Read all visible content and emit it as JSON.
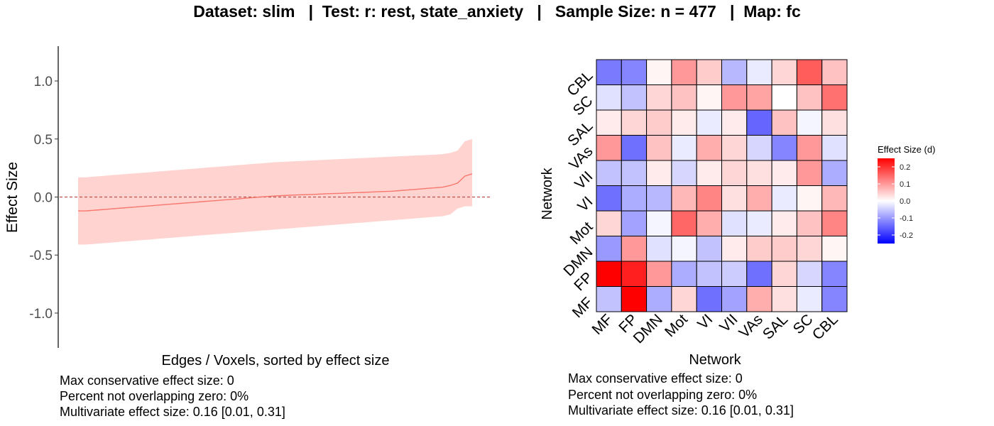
{
  "title": "Dataset: slim   |  Test: r: rest, state_anxiety   |   Sample Size: n = 477   |  Map: fc",
  "colors": {
    "line": "#f8766d",
    "ribbon": "#ffd4d0",
    "zero_line": "#c0504d",
    "low": "#0000ff",
    "mid": "#ffffff",
    "high": "#ff0000",
    "tile_border": "#000000"
  },
  "left_stats": [
    "Max conservative effect size: 0",
    "Percent not overlapping zero: 0%",
    "Multivariate effect size: 0.16 [0.01, 0.31]"
  ],
  "right_stats": [
    "Max conservative effect size: 0",
    "Percent not overlapping zero: 0%",
    "Multivariate effect size: 0.16 [0.01, 0.31]"
  ],
  "chart_data": [
    {
      "type": "line",
      "title": "",
      "xlabel": "Edges / Voxels, sorted by effect size",
      "ylabel": "Effect Size",
      "ylim": [
        -1.3,
        1.3
      ],
      "yticks": [
        -1.0,
        -0.5,
        0.0,
        0.5,
        1.0
      ],
      "ytick_labels": [
        "-1.0",
        "-0.5",
        "0.0",
        "0.5",
        "1.0"
      ],
      "reference_line": 0,
      "series": [
        {
          "x": [
            1,
            2,
            3,
            4,
            5,
            6,
            7,
            8,
            9,
            10,
            11,
            12,
            13,
            14,
            15,
            16,
            17,
            18,
            19,
            20,
            21,
            22,
            23,
            24,
            25,
            26,
            27,
            28,
            29,
            30,
            31,
            32,
            33,
            34,
            35,
            36,
            37,
            38,
            39,
            40,
            41,
            42,
            43,
            44,
            45,
            46,
            47,
            48,
            49,
            50,
            51,
            52,
            53,
            54,
            55
          ],
          "y": [
            -0.12,
            -0.12,
            -0.115,
            -0.11,
            -0.105,
            -0.1,
            -0.095,
            -0.09,
            -0.085,
            -0.08,
            -0.075,
            -0.07,
            -0.065,
            -0.06,
            -0.055,
            -0.05,
            -0.045,
            -0.04,
            -0.035,
            -0.03,
            -0.025,
            -0.02,
            -0.015,
            -0.01,
            -0.005,
            0.0,
            0.005,
            0.01,
            0.012,
            0.015,
            0.018,
            0.02,
            0.022,
            0.025,
            0.028,
            0.03,
            0.032,
            0.035,
            0.038,
            0.04,
            0.042,
            0.045,
            0.048,
            0.05,
            0.055,
            0.06,
            0.065,
            0.07,
            0.075,
            0.08,
            0.085,
            0.1,
            0.12,
            0.18,
            0.2
          ],
          "lower": [
            -0.41,
            -0.41,
            -0.405,
            -0.4,
            -0.395,
            -0.39,
            -0.385,
            -0.38,
            -0.375,
            -0.37,
            -0.365,
            -0.36,
            -0.355,
            -0.35,
            -0.345,
            -0.34,
            -0.335,
            -0.33,
            -0.325,
            -0.32,
            -0.315,
            -0.31,
            -0.305,
            -0.3,
            -0.295,
            -0.29,
            -0.285,
            -0.28,
            -0.275,
            -0.27,
            -0.265,
            -0.26,
            -0.255,
            -0.25,
            -0.245,
            -0.24,
            -0.235,
            -0.23,
            -0.225,
            -0.22,
            -0.215,
            -0.21,
            -0.205,
            -0.2,
            -0.195,
            -0.19,
            -0.185,
            -0.18,
            -0.175,
            -0.17,
            -0.165,
            -0.15,
            -0.1,
            -0.08,
            -0.08
          ],
          "upper": [
            0.17,
            0.17,
            0.175,
            0.18,
            0.185,
            0.19,
            0.195,
            0.2,
            0.205,
            0.21,
            0.215,
            0.22,
            0.225,
            0.23,
            0.235,
            0.24,
            0.245,
            0.25,
            0.255,
            0.26,
            0.265,
            0.27,
            0.275,
            0.28,
            0.285,
            0.29,
            0.295,
            0.3,
            0.303,
            0.306,
            0.309,
            0.312,
            0.315,
            0.318,
            0.321,
            0.324,
            0.327,
            0.33,
            0.333,
            0.336,
            0.339,
            0.342,
            0.345,
            0.348,
            0.351,
            0.354,
            0.357,
            0.36,
            0.363,
            0.366,
            0.37,
            0.38,
            0.4,
            0.48,
            0.5
          ]
        }
      ]
    },
    {
      "type": "heatmap",
      "xlabel": "Network",
      "ylabel": "Network",
      "x_categories": [
        "MF",
        "FP",
        "DMN",
        "Mot",
        "VI",
        "VII",
        "VAs",
        "SAL",
        "SC",
        "CBL"
      ],
      "y_categories_top_to_bottom": [
        "CBL",
        "SC",
        "SAL",
        "VAs",
        "VII",
        "VI",
        "Mot",
        "DMN",
        "FP",
        "MF"
      ],
      "values_rows_top_to_bottom": [
        [
          -0.13,
          -0.12,
          0.01,
          0.1,
          0.05,
          -0.07,
          -0.02,
          0.04,
          0.16,
          0.06
        ],
        [
          -0.03,
          -0.06,
          0.04,
          0.06,
          0.01,
          0.1,
          0.09,
          0.0,
          0.06,
          0.14
        ],
        [
          0.02,
          0.04,
          0.05,
          0.02,
          -0.02,
          0.02,
          -0.15,
          0.06,
          -0.01,
          0.03
        ],
        [
          0.1,
          -0.14,
          0.06,
          -0.02,
          0.08,
          0.04,
          -0.04,
          -0.12,
          0.1,
          -0.03
        ],
        [
          -0.06,
          -0.06,
          0.02,
          -0.04,
          0.02,
          0.04,
          0.03,
          0.02,
          0.1,
          -0.08
        ],
        [
          -0.14,
          -0.08,
          -0.07,
          0.07,
          0.12,
          0.03,
          0.08,
          -0.02,
          0.01,
          0.07
        ],
        [
          0.04,
          -0.09,
          -0.01,
          0.15,
          0.08,
          -0.03,
          -0.02,
          0.02,
          0.06,
          0.12
        ],
        [
          -0.1,
          0.1,
          -0.03,
          -0.01,
          -0.06,
          0.02,
          0.05,
          0.05,
          0.04,
          0.01
        ],
        [
          0.26,
          0.22,
          0.1,
          -0.08,
          -0.06,
          -0.05,
          -0.14,
          0.04,
          -0.04,
          -0.12
        ],
        [
          -0.06,
          0.26,
          -0.08,
          0.04,
          -0.14,
          -0.09,
          0.08,
          0.03,
          -0.02,
          -0.12
        ]
      ],
      "legend": {
        "title": "Effect Size (d)",
        "range": [
          -0.25,
          0.25
        ],
        "ticks": [
          0.2,
          0.1,
          0.0,
          -0.1,
          -0.2
        ],
        "tick_labels": [
          "0.2",
          "0.1",
          "0.0",
          "-0.1",
          "-0.2"
        ],
        "placement": "right"
      }
    }
  ]
}
